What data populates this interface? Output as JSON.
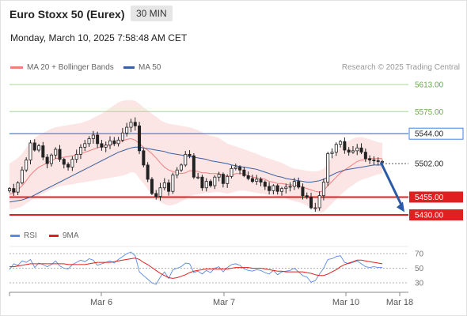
{
  "header": {
    "title": "Euro Stoxx 50 (Eurex)",
    "interval": "30 MIN",
    "datetime": "Monday, March 10, 2025 7:58:48 AM CET"
  },
  "legend": {
    "ma20": "MA 20 + Bollinger Bands",
    "ma50": "MA 50",
    "credit": "Research © 2025 Trading Central",
    "rsi": "RSI",
    "rsi_ma": "9MA"
  },
  "colors": {
    "ma20": "#f08080",
    "bands": "#fadcdc",
    "ma50": "#3a5fa0",
    "resistance_green": "#a8d890",
    "pivot_blue": "#4a7fe0",
    "support_red": "#e02020",
    "rsi": "#5b8be0",
    "rsi_ma": "#e02020",
    "arrow": "#2a5aa8"
  },
  "chart_data": [
    {
      "type": "candlestick",
      "title": "",
      "ylim": [
        5400,
        5640
      ],
      "levels": [
        {
          "label": "5613.00",
          "value": 5613,
          "style": "resistance_green"
        },
        {
          "label": "5575.00",
          "value": 5575,
          "style": "resistance_green"
        },
        {
          "label": "5544.00",
          "value": 5544,
          "style": "pivot_blue"
        },
        {
          "label": "5502.00",
          "value": 5502,
          "style": "current"
        },
        {
          "label": "5455.00",
          "value": 5455,
          "style": "support_red"
        },
        {
          "label": "5430.00",
          "value": 5430,
          "style": "support_red"
        }
      ],
      "x_ticks": [
        "Mar 6",
        "Mar 7",
        "Mar 10",
        "Mar 18"
      ],
      "forecast_arrow": {
        "from": 5504,
        "to": 5434
      },
      "closes": [
        5467,
        5462,
        5475,
        5493,
        5507,
        5531,
        5521,
        5527,
        5511,
        5502,
        5514,
        5522,
        5508,
        5501,
        5497,
        5508,
        5515,
        5525,
        5530,
        5537,
        5542,
        5530,
        5525,
        5528,
        5534,
        5530,
        5535,
        5545,
        5553,
        5560,
        5555,
        5520,
        5500,
        5480,
        5460,
        5456,
        5468,
        5475,
        5463,
        5486,
        5493,
        5500,
        5515,
        5513,
        5483,
        5483,
        5468,
        5477,
        5471,
        5483,
        5487,
        5474,
        5484,
        5495,
        5497,
        5493,
        5485,
        5481,
        5477,
        5480,
        5476,
        5470,
        5464,
        5471,
        5463,
        5467,
        5469,
        5470,
        5477,
        5469,
        5457,
        5455,
        5440,
        5440,
        5457,
        5476,
        5516,
        5518,
        5529,
        5533,
        5521,
        5518,
        5520,
        5524,
        5518,
        5509,
        5507,
        5506,
        5505,
        5505
      ],
      "ma20": [
        5459,
        5461,
        5465,
        5471,
        5478,
        5486,
        5492,
        5497,
        5500,
        5503,
        5506,
        5509,
        5510,
        5511,
        5512,
        5513,
        5514,
        5516,
        5518,
        5520,
        5522,
        5524,
        5526,
        5527,
        5528,
        5530,
        5532,
        5534,
        5536,
        5537,
        5535,
        5530,
        5525,
        5521,
        5516,
        5510,
        5503,
        5497,
        5493,
        5491,
        5489,
        5488,
        5489,
        5492,
        5492,
        5491,
        5489,
        5489,
        5488,
        5488,
        5488,
        5486,
        5484,
        5485,
        5488,
        5488,
        5488,
        5485,
        5483,
        5482,
        5481,
        5480,
        5477,
        5476,
        5474,
        5474,
        5473,
        5472,
        5472,
        5471,
        5469,
        5467,
        5465,
        5463,
        5462,
        5464,
        5471,
        5477,
        5483,
        5489,
        5493,
        5497,
        5501,
        5505,
        5507,
        5508,
        5509,
        5509,
        5509,
        5509
      ],
      "band_upper": [
        5502,
        5506,
        5510,
        5516,
        5524,
        5532,
        5538,
        5542,
        5545,
        5548,
        5551,
        5553,
        5554,
        5555,
        5556,
        5557,
        5558,
        5559,
        5561,
        5563,
        5566,
        5569,
        5572,
        5576,
        5580,
        5584,
        5588,
        5590,
        5591,
        5591,
        5590,
        5586,
        5581,
        5577,
        5572,
        5568,
        5563,
        5560,
        5558,
        5557,
        5556,
        5555,
        5554,
        5553,
        5551,
        5549,
        5546,
        5543,
        5541,
        5540,
        5538,
        5534,
        5530,
        5528,
        5526,
        5524,
        5522,
        5520,
        5518,
        5516,
        5513,
        5511,
        5509,
        5507,
        5505,
        5503,
        5500,
        5497,
        5495,
        5494,
        5493,
        5492,
        5491,
        5491,
        5492,
        5495,
        5503,
        5511,
        5518,
        5525,
        5530,
        5534,
        5537,
        5539,
        5539,
        5538,
        5536,
        5534,
        5532,
        5531
      ],
      "band_lower": [
        5438,
        5438,
        5440,
        5442,
        5446,
        5450,
        5454,
        5457,
        5460,
        5463,
        5466,
        5468,
        5470,
        5471,
        5472,
        5473,
        5474,
        5475,
        5476,
        5477,
        5478,
        5479,
        5480,
        5481,
        5482,
        5483,
        5484,
        5485,
        5487,
        5490,
        5489,
        5481,
        5474,
        5466,
        5459,
        5453,
        5448,
        5445,
        5443,
        5444,
        5446,
        5449,
        5452,
        5456,
        5458,
        5459,
        5460,
        5461,
        5461,
        5462,
        5462,
        5461,
        5460,
        5461,
        5463,
        5464,
        5464,
        5463,
        5462,
        5461,
        5460,
        5459,
        5458,
        5457,
        5456,
        5455,
        5453,
        5451,
        5449,
        5448,
        5446,
        5443,
        5440,
        5436,
        5433,
        5434,
        5440,
        5446,
        5452,
        5458,
        5463,
        5468,
        5472,
        5476,
        5479,
        5481,
        5483,
        5485,
        5487,
        5488
      ],
      "ma50": [
        5448,
        5449,
        5450,
        5451,
        5453,
        5455,
        5458,
        5461,
        5464,
        5467,
        5470,
        5473,
        5476,
        5479,
        5482,
        5485,
        5488,
        5491,
        5494,
        5497,
        5500,
        5503,
        5506,
        5509,
        5512,
        5515,
        5518,
        5520,
        5522,
        5524,
        5525,
        5525,
        5524,
        5523,
        5522,
        5521,
        5520,
        5519,
        5517,
        5516,
        5515,
        5514,
        5513,
        5512,
        5511,
        5510,
        5509,
        5508,
        5506,
        5505,
        5504,
        5503,
        5502,
        5500,
        5499,
        5498,
        5497,
        5496,
        5495,
        5494,
        5492,
        5490,
        5488,
        5486,
        5484,
        5483,
        5481,
        5480,
        5479,
        5478,
        5477,
        5476,
        5476,
        5477,
        5478,
        5480,
        5483,
        5486,
        5489,
        5491,
        5493,
        5494,
        5495,
        5496,
        5497,
        5498,
        5499,
        5500,
        5500,
        5500
      ]
    },
    {
      "type": "line",
      "title": "",
      "ylim": [
        20,
        80
      ],
      "y_ticks": [
        70,
        50,
        30
      ],
      "series": [
        {
          "name": "RSI",
          "values": [
            48,
            56,
            54,
            60,
            58,
            62,
            51,
            57,
            55,
            52,
            55,
            60,
            53,
            50,
            49,
            55,
            58,
            61,
            59,
            63,
            61,
            54,
            56,
            58,
            60,
            57,
            62,
            66,
            70,
            72,
            67,
            45,
            40,
            35,
            30,
            28,
            38,
            45,
            36,
            48,
            50,
            52,
            57,
            56,
            44,
            46,
            42,
            47,
            44,
            50,
            52,
            45,
            51,
            55,
            56,
            54,
            49,
            47,
            46,
            48,
            47,
            44,
            42,
            47,
            41,
            45,
            46,
            47,
            50,
            45,
            40,
            38,
            31,
            33,
            42,
            50,
            62,
            63,
            66,
            67,
            58,
            56,
            58,
            60,
            56,
            52,
            51,
            52,
            51,
            51
          ]
        },
        {
          "name": "9MA",
          "values": [
            52,
            52,
            53,
            54,
            55,
            56,
            56,
            56,
            56,
            56,
            56,
            56,
            56,
            56,
            55,
            55,
            55,
            55,
            55,
            56,
            57,
            58,
            58,
            58,
            58,
            59,
            60,
            61,
            62,
            63,
            64,
            62,
            58,
            55,
            51,
            47,
            43,
            40,
            37,
            36,
            37,
            39,
            41,
            44,
            46,
            47,
            48,
            49,
            49,
            49,
            49,
            49,
            49,
            50,
            51,
            51,
            51,
            51,
            50,
            50,
            50,
            49,
            48,
            47,
            46,
            46,
            45,
            45,
            45,
            45,
            45,
            44,
            43,
            41,
            40,
            40,
            42,
            45,
            48,
            52,
            55,
            57,
            59,
            61,
            61,
            60,
            59,
            58,
            57,
            56
          ]
        }
      ]
    }
  ]
}
